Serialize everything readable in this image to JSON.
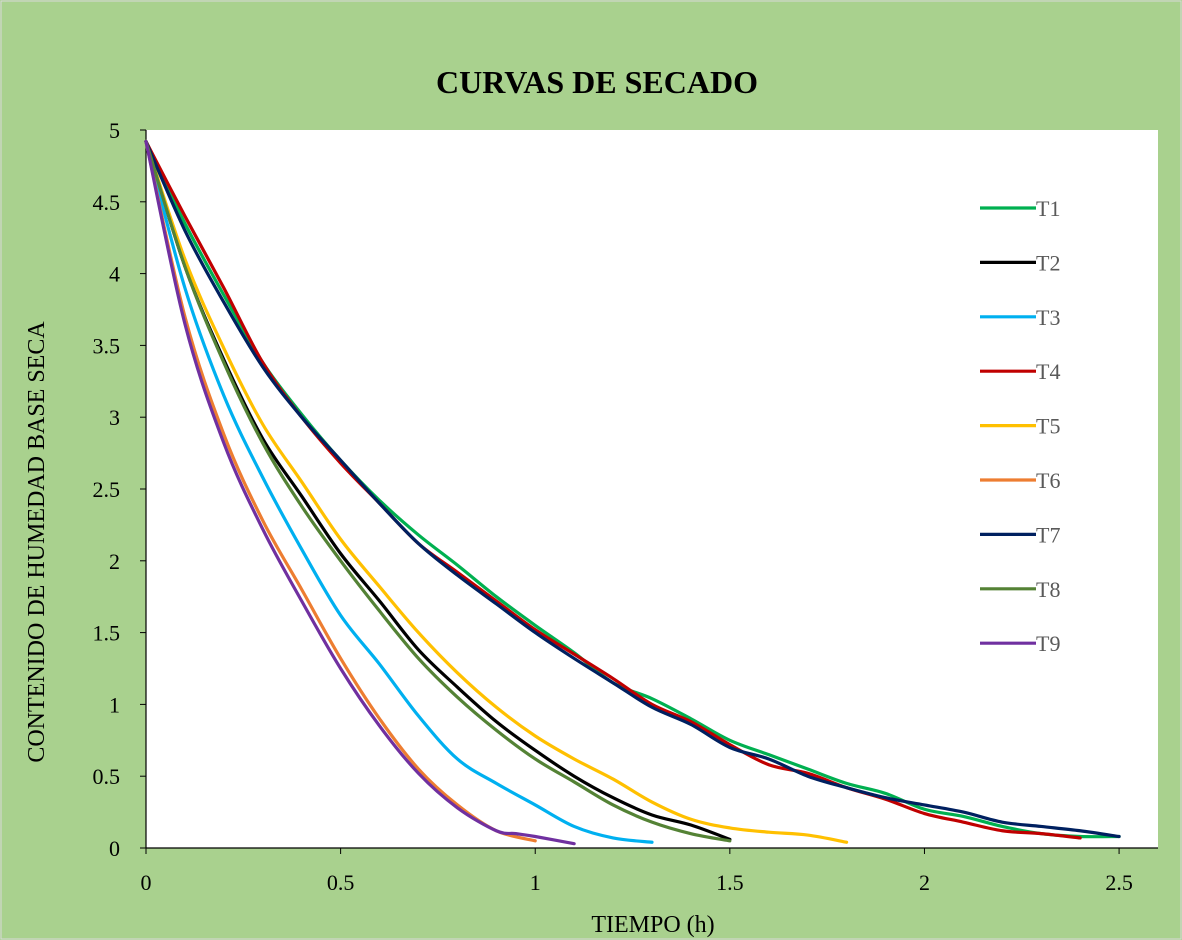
{
  "chart_data": {
    "type": "line",
    "title": "CURVAS DE SECADO",
    "xlabel": "TIEMPO (h)",
    "ylabel": "CONTENIDO DE HUMEDAD BASE SECA",
    "xlim": [
      0,
      2.6
    ],
    "ylim": [
      0,
      5
    ],
    "xticks": [
      "0",
      "0.5",
      "1",
      "1.5",
      "2",
      "2.5"
    ],
    "xtick_values": [
      0,
      0.5,
      1,
      1.5,
      2,
      2.5
    ],
    "yticks": [
      "0",
      "0.5",
      "1",
      "1.5",
      "2",
      "2.5",
      "3",
      "3.5",
      "4",
      "4.5",
      "5"
    ],
    "ytick_values": [
      0,
      0.5,
      1,
      1.5,
      2,
      2.5,
      3,
      3.5,
      4,
      4.5,
      5
    ],
    "grid": false,
    "legend_position": "right",
    "background_color": "#a9d18e",
    "plot_background_color": "#ffffff",
    "series": [
      {
        "name": "T1",
        "color": "#00b050",
        "x": [
          0,
          0.1,
          0.2,
          0.3,
          0.4,
          0.5,
          0.6,
          0.7,
          0.8,
          0.9,
          1.0,
          1.1,
          1.2,
          1.3,
          1.4,
          1.5,
          1.6,
          1.7,
          1.8,
          1.9,
          2.0,
          2.1,
          2.2,
          2.3,
          2.4,
          2.5
        ],
        "y": [
          4.92,
          4.35,
          3.85,
          3.38,
          3.02,
          2.7,
          2.42,
          2.18,
          1.97,
          1.75,
          1.55,
          1.36,
          1.15,
          1.04,
          0.9,
          0.75,
          0.65,
          0.55,
          0.45,
          0.38,
          0.27,
          0.22,
          0.15,
          0.1,
          0.08,
          0.08
        ]
      },
      {
        "name": "T2",
        "color": "#000000",
        "x": [
          0,
          0.1,
          0.2,
          0.3,
          0.4,
          0.5,
          0.6,
          0.7,
          0.8,
          0.9,
          1.0,
          1.1,
          1.2,
          1.3,
          1.4,
          1.5
        ],
        "y": [
          4.92,
          4.05,
          3.4,
          2.85,
          2.45,
          2.05,
          1.72,
          1.38,
          1.12,
          0.88,
          0.68,
          0.5,
          0.35,
          0.23,
          0.16,
          0.06
        ]
      },
      {
        "name": "T3",
        "color": "#00b0f0",
        "x": [
          0,
          0.1,
          0.2,
          0.3,
          0.4,
          0.5,
          0.6,
          0.7,
          0.8,
          0.9,
          1.0,
          1.1,
          1.2,
          1.3
        ],
        "y": [
          4.92,
          3.9,
          3.15,
          2.58,
          2.08,
          1.62,
          1.28,
          0.92,
          0.62,
          0.45,
          0.3,
          0.15,
          0.07,
          0.04
        ]
      },
      {
        "name": "T4",
        "color": "#c00000",
        "x": [
          0,
          0.1,
          0.2,
          0.3,
          0.4,
          0.5,
          0.6,
          0.7,
          0.8,
          0.9,
          1.0,
          1.1,
          1.2,
          1.3,
          1.4,
          1.5,
          1.6,
          1.7,
          1.8,
          1.9,
          2.0,
          2.1,
          2.2,
          2.3,
          2.4
        ],
        "y": [
          4.92,
          4.4,
          3.9,
          3.38,
          3.0,
          2.68,
          2.4,
          2.12,
          1.92,
          1.72,
          1.52,
          1.35,
          1.18,
          1.0,
          0.88,
          0.72,
          0.58,
          0.52,
          0.42,
          0.34,
          0.24,
          0.18,
          0.12,
          0.1,
          0.07
        ]
      },
      {
        "name": "T5",
        "color": "#ffc000",
        "x": [
          0,
          0.1,
          0.2,
          0.3,
          0.4,
          0.5,
          0.6,
          0.7,
          0.8,
          0.9,
          1.0,
          1.1,
          1.2,
          1.3,
          1.4,
          1.5,
          1.6,
          1.7,
          1.8
        ],
        "y": [
          4.92,
          4.1,
          3.48,
          2.95,
          2.55,
          2.15,
          1.82,
          1.5,
          1.22,
          0.98,
          0.78,
          0.62,
          0.48,
          0.32,
          0.2,
          0.14,
          0.11,
          0.09,
          0.04
        ]
      },
      {
        "name": "T6",
        "color": "#ed7d31",
        "x": [
          0,
          0.1,
          0.2,
          0.3,
          0.4,
          0.5,
          0.6,
          0.7,
          0.8,
          0.9,
          1.0
        ],
        "y": [
          4.92,
          3.7,
          2.88,
          2.28,
          1.8,
          1.32,
          0.9,
          0.55,
          0.3,
          0.12,
          0.05
        ]
      },
      {
        "name": "T7",
        "color": "#002060",
        "x": [
          0,
          0.1,
          0.2,
          0.3,
          0.4,
          0.5,
          0.6,
          0.7,
          0.8,
          0.9,
          1.0,
          1.1,
          1.2,
          1.3,
          1.4,
          1.5,
          1.6,
          1.7,
          1.8,
          1.9,
          2.0,
          2.1,
          2.2,
          2.3,
          2.4,
          2.5
        ],
        "y": [
          4.92,
          4.3,
          3.8,
          3.35,
          3.0,
          2.7,
          2.4,
          2.12,
          1.9,
          1.7,
          1.5,
          1.32,
          1.15,
          0.98,
          0.86,
          0.7,
          0.62,
          0.5,
          0.42,
          0.35,
          0.3,
          0.25,
          0.18,
          0.15,
          0.12,
          0.08
        ]
      },
      {
        "name": "T8",
        "color": "#548235",
        "x": [
          0,
          0.1,
          0.2,
          0.3,
          0.4,
          0.5,
          0.6,
          0.7,
          0.8,
          0.9,
          1.0,
          1.1,
          1.2,
          1.3,
          1.4,
          1.5
        ],
        "y": [
          4.92,
          4.05,
          3.38,
          2.82,
          2.38,
          2.0,
          1.65,
          1.32,
          1.05,
          0.82,
          0.62,
          0.46,
          0.3,
          0.18,
          0.1,
          0.05
        ]
      },
      {
        "name": "T9",
        "color": "#7030a0",
        "x": [
          0,
          0.1,
          0.2,
          0.3,
          0.4,
          0.5,
          0.6,
          0.7,
          0.8,
          0.9,
          0.95,
          1.0,
          1.1
        ],
        "y": [
          4.92,
          3.65,
          2.82,
          2.22,
          1.72,
          1.25,
          0.85,
          0.52,
          0.28,
          0.12,
          0.1,
          0.08,
          0.03
        ]
      }
    ]
  }
}
